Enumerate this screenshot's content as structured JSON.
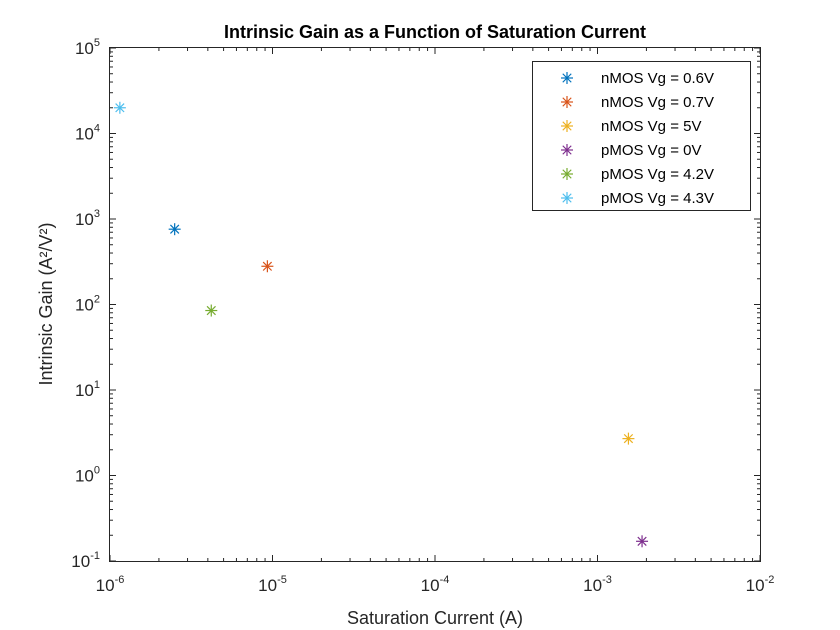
{
  "chart_data": {
    "type": "scatter",
    "title": "Intrinsic Gain as a Function of Saturation Current",
    "xlabel": "Saturation Current (A)",
    "ylabel": "Intrinsic Gain (A²/V²)",
    "xscale": "log",
    "yscale": "log",
    "xlim": [
      1e-06,
      0.01
    ],
    "ylim": [
      0.1,
      100000
    ],
    "xticks": [
      {
        "value": 1e-06,
        "base": "10",
        "exp": "-6"
      },
      {
        "value": 1e-05,
        "base": "10",
        "exp": "-5"
      },
      {
        "value": 0.0001,
        "base": "10",
        "exp": "-4"
      },
      {
        "value": 0.001,
        "base": "10",
        "exp": "-3"
      },
      {
        "value": 0.01,
        "base": "10",
        "exp": "-2"
      }
    ],
    "yticks": [
      {
        "value": 0.1,
        "base": "10",
        "exp": "-1"
      },
      {
        "value": 1,
        "base": "10",
        "exp": "0"
      },
      {
        "value": 10,
        "base": "10",
        "exp": "1"
      },
      {
        "value": 100,
        "base": "10",
        "exp": "2"
      },
      {
        "value": 1000,
        "base": "10",
        "exp": "3"
      },
      {
        "value": 10000,
        "base": "10",
        "exp": "4"
      },
      {
        "value": 100000,
        "base": "10",
        "exp": "5"
      }
    ],
    "grid": false,
    "legend_position": "top-right",
    "marker": "asterisk",
    "series": [
      {
        "name": "nMOS Vg = 0.6V",
        "color": "#0072BD",
        "x": [
          2.5e-06
        ],
        "y": [
          760
        ]
      },
      {
        "name": "nMOS Vg = 0.7V",
        "color": "#D95319",
        "x": [
          9.3e-06
        ],
        "y": [
          280
        ]
      },
      {
        "name": "nMOS Vg = 5V",
        "color": "#EDB120",
        "x": [
          0.00155
        ],
        "y": [
          2.7
        ]
      },
      {
        "name": "pMOS Vg = 0V",
        "color": "#7E2F8E",
        "x": [
          0.00188
        ],
        "y": [
          0.17
        ]
      },
      {
        "name": "pMOS Vg = 4.2V",
        "color": "#77AC30",
        "x": [
          4.2e-06
        ],
        "y": [
          85
        ]
      },
      {
        "name": "pMOS Vg = 4.3V",
        "color": "#4DBEEE",
        "x": [
          1.15e-06
        ],
        "y": [
          20000
        ]
      }
    ]
  }
}
